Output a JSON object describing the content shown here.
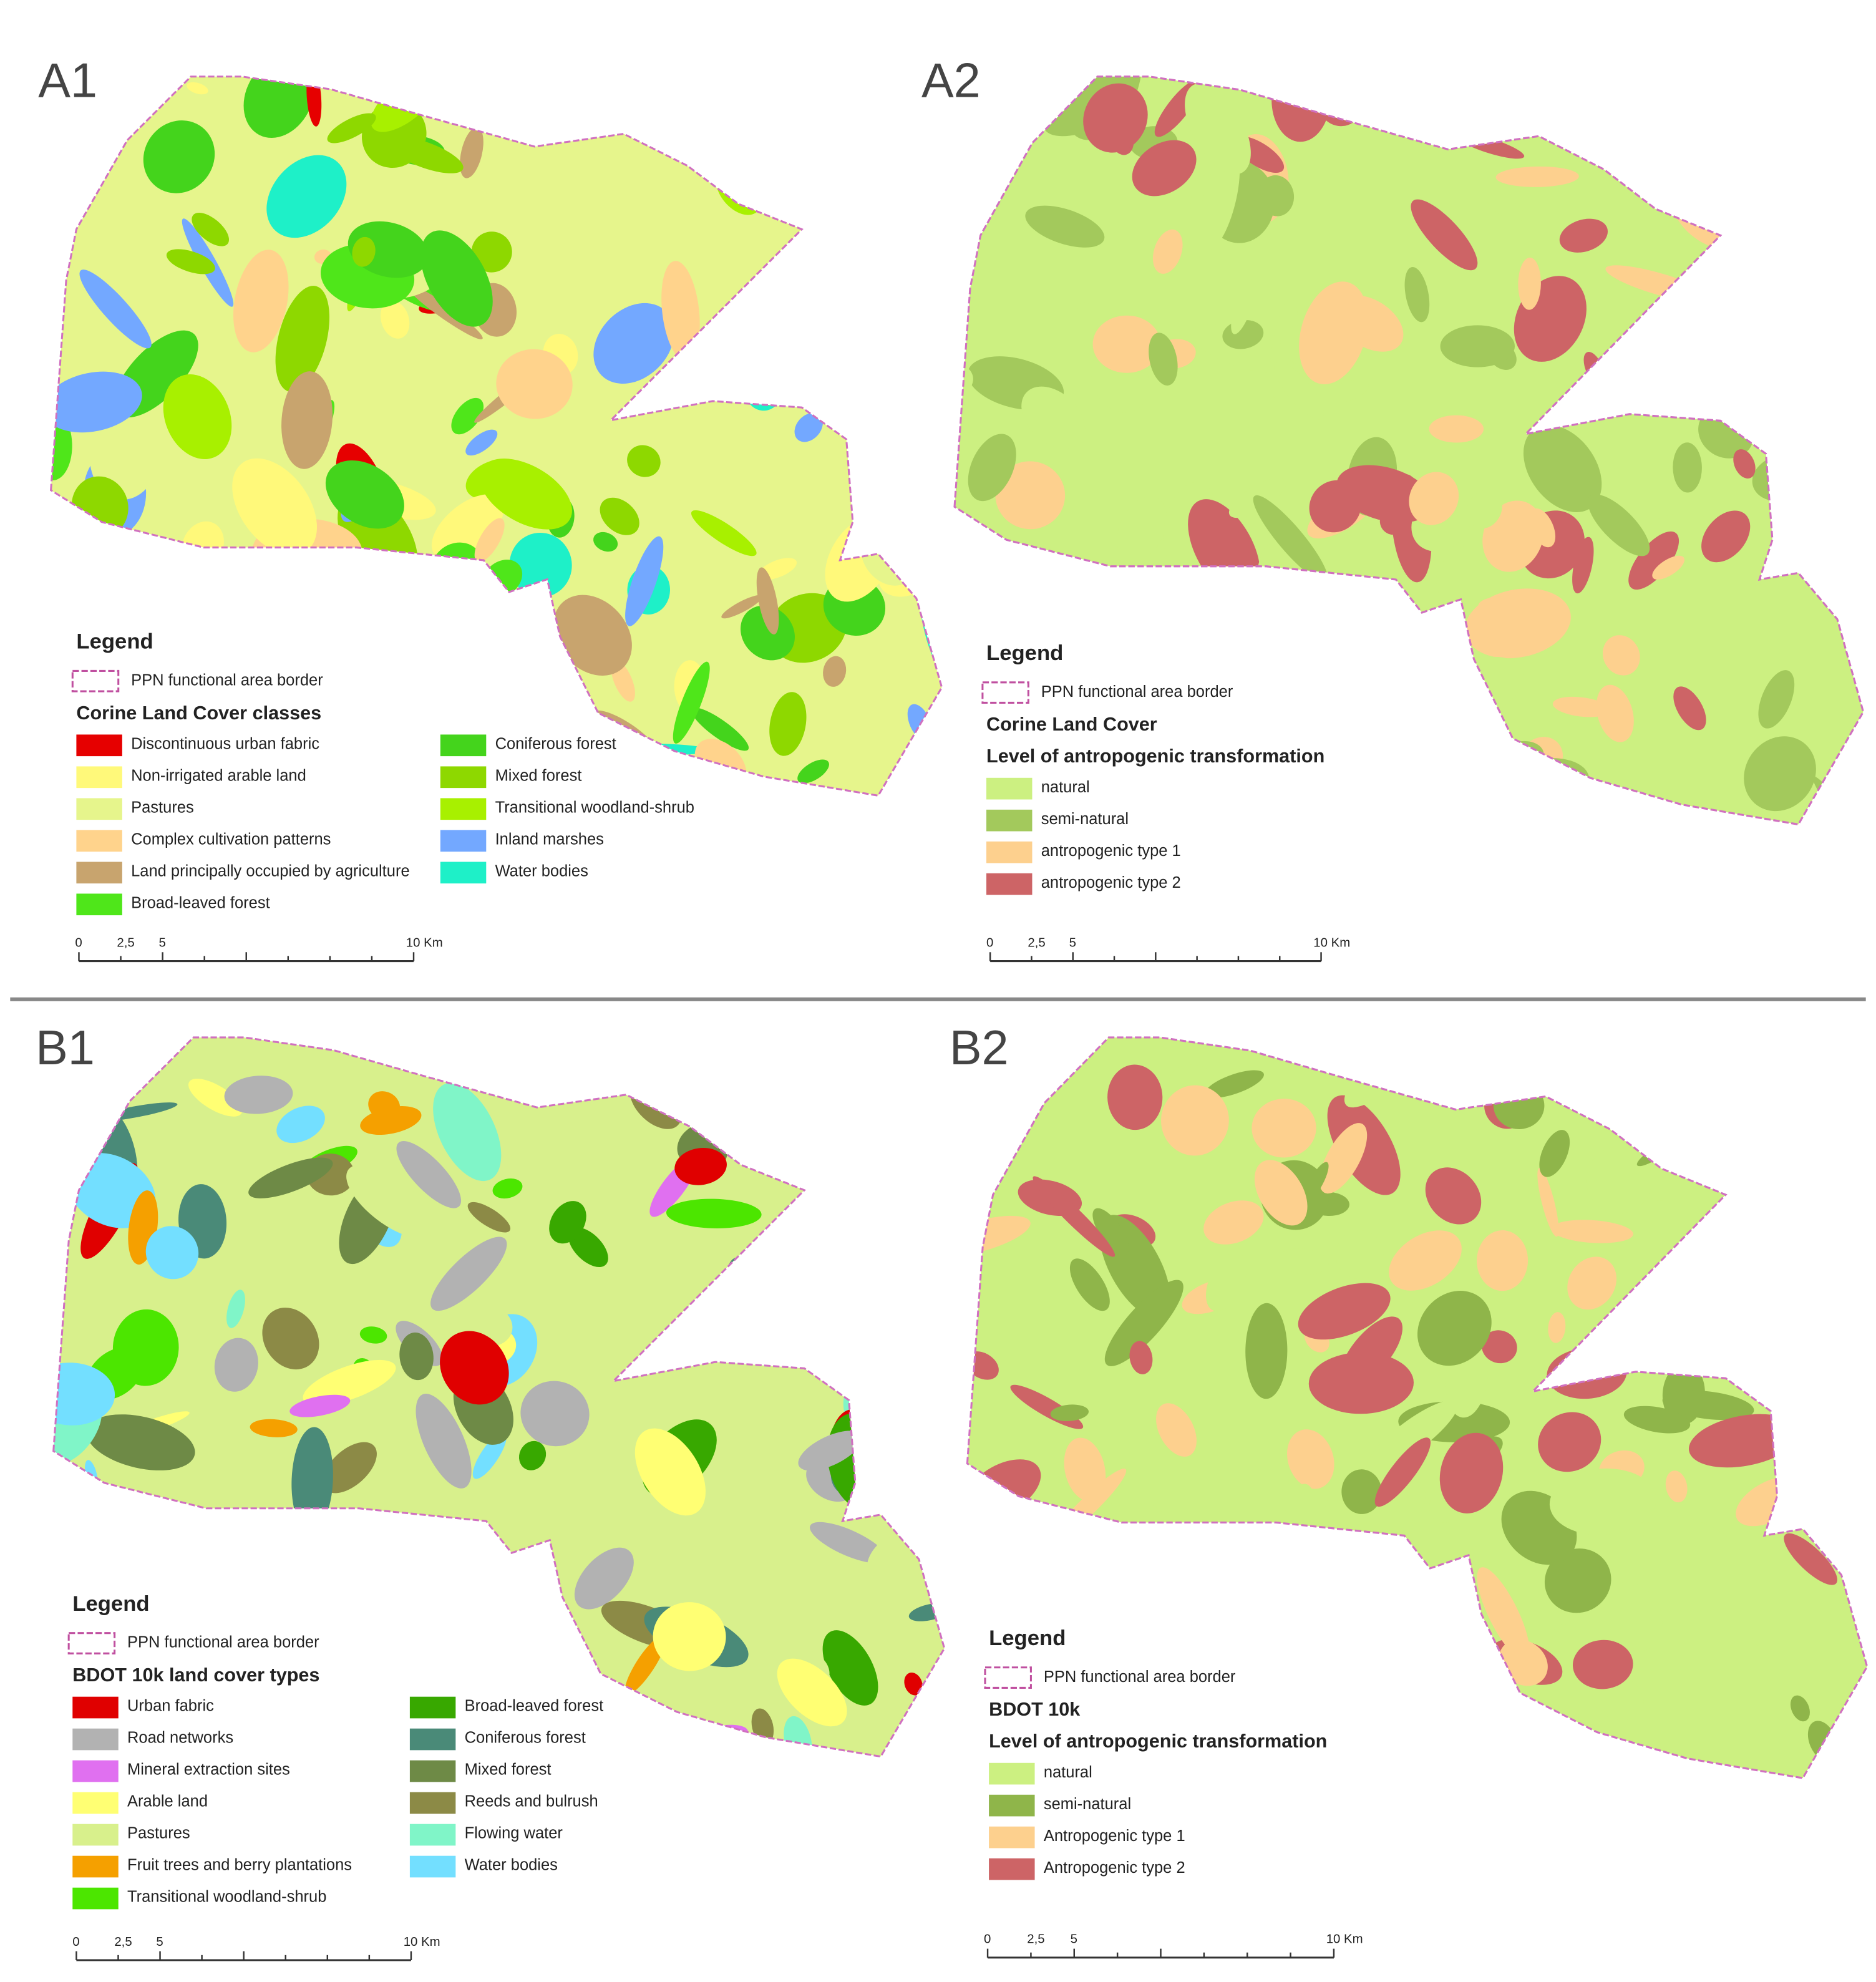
{
  "panels": [
    {
      "label": "A1",
      "legend": {
        "title": "Legend",
        "border_label": "PPN functional area border",
        "headings": [
          "Corine Land Cover classes"
        ],
        "items": [
          {
            "label": "Discontinuous urban fabric",
            "color": "#e60000"
          },
          {
            "label": "Non-irrigated arable land",
            "color": "#fff97a"
          },
          {
            "label": "Pastures",
            "color": "#e6f58c"
          },
          {
            "label": "Complex cultivation patterns",
            "color": "#ffd38c"
          },
          {
            "label": "Land principally occupied by agriculture",
            "color": "#c8a46e"
          },
          {
            "label": "Broad-leaved forest",
            "color": "#4fe61a"
          },
          {
            "label": "Coniferous forest",
            "color": "#44d41c"
          },
          {
            "label": "Mixed forest",
            "color": "#8ed800"
          },
          {
            "label": "Transitional woodland-shrub",
            "color": "#a8f000"
          },
          {
            "label": "Inland marshes",
            "color": "#73a8ff"
          },
          {
            "label": "Water bodies",
            "color": "#1ef0c8"
          }
        ]
      },
      "scale": [
        "0",
        "2,5",
        "5",
        "10 Km"
      ]
    },
    {
      "label": "A2",
      "legend": {
        "title": "Legend",
        "border_label": "PPN functional area border",
        "headings": [
          "Corine Land Cover",
          "Level of antropogenic transformation"
        ],
        "items": [
          {
            "label": "natural",
            "color": "#ccf081"
          },
          {
            "label": "semi-natural",
            "color": "#a3c95c"
          },
          {
            "label": "antropogenic type 1",
            "color": "#fdd08e"
          },
          {
            "label": "antropogenic type 2",
            "color": "#cd6466"
          }
        ]
      },
      "scale": [
        "0",
        "2,5",
        "5",
        "10 Km"
      ]
    },
    {
      "label": "B1",
      "legend": {
        "title": "Legend",
        "border_label": "PPN functional area border",
        "headings": [
          "BDOT 10k land cover types"
        ],
        "items": [
          {
            "label": "Urban fabric",
            "color": "#e00000"
          },
          {
            "label": "Road networks",
            "color": "#b2b2b2"
          },
          {
            "label": "Mineral extraction sites",
            "color": "#e070f0"
          },
          {
            "label": "Arable land",
            "color": "#ffff73"
          },
          {
            "label": "Pastures",
            "color": "#d8f08c"
          },
          {
            "label": "Fruit trees and berry plantations",
            "color": "#f5a000"
          },
          {
            "label": "Transitional woodland-shrub",
            "color": "#4ce600"
          },
          {
            "label": "Broad-leaved forest",
            "color": "#38a800"
          },
          {
            "label": "Coniferous forest",
            "color": "#4a8a78"
          },
          {
            "label": "Mixed forest",
            "color": "#6e8a46"
          },
          {
            "label": "Reeds and bulrush",
            "color": "#8c8a46"
          },
          {
            "label": "Flowing water",
            "color": "#80f5c8"
          },
          {
            "label": "Water bodies",
            "color": "#73dfff"
          }
        ]
      },
      "scale": [
        "0",
        "2,5",
        "5",
        "10 Km"
      ]
    },
    {
      "label": "B2",
      "legend": {
        "title": "Legend",
        "border_label": "PPN functional area border",
        "headings": [
          "BDOT 10k",
          "Level of antropogenic transformation"
        ],
        "items": [
          {
            "label": "natural",
            "color": "#ccf081"
          },
          {
            "label": "semi-natural",
            "color": "#8fb54a"
          },
          {
            "label": "Antropogenic type 1",
            "color": "#fdd08e"
          },
          {
            "label": "Antropogenic type 2",
            "color": "#cd6466"
          }
        ]
      },
      "scale": [
        "0",
        "2,5",
        "5",
        "10 Km"
      ]
    }
  ]
}
